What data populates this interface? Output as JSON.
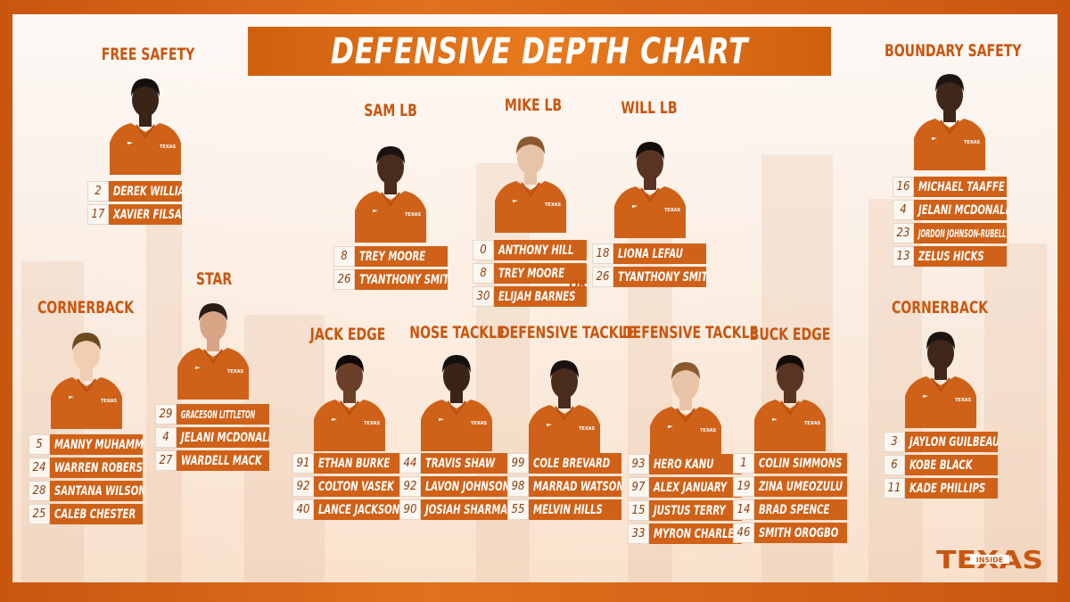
{
  "title": "DEFENSIVE DEPTH CHART",
  "or_label": "OR",
  "logo": {
    "word": "TEXAS",
    "inset": "INSIDE"
  },
  "colors": {
    "burnt_orange": "#cf6218",
    "accent": "#e87a1e",
    "background": "#fff8f1"
  },
  "positions": [
    {
      "id": "free-safety",
      "label": "FREE SAFETY",
      "players": [
        {
          "num": "2",
          "name": "DEREK WILLIAMS"
        },
        {
          "num": "17",
          "name": "XAVIER FILSAIME"
        }
      ]
    },
    {
      "id": "sam-lb",
      "label": "SAM LB",
      "players": [
        {
          "num": "8",
          "name": "TREY MOORE"
        },
        {
          "num": "26",
          "name": "TYANTHONY SMITH"
        }
      ]
    },
    {
      "id": "mike-lb",
      "label": "MIKE LB",
      "players": [
        {
          "num": "0",
          "name": "ANTHONY HILL"
        },
        {
          "num": "8",
          "name": "TREY MOORE"
        },
        {
          "num": "30",
          "name": "ELIJAH BARNES"
        }
      ]
    },
    {
      "id": "will-lb",
      "label": "WILL LB",
      "players": [
        {
          "num": "18",
          "name": "LIONA LEFAU"
        },
        {
          "num": "26",
          "name": "TYANTHONY SMITH"
        }
      ]
    },
    {
      "id": "boundary-safety",
      "label": "BOUNDARY SAFETY",
      "players": [
        {
          "num": "16",
          "name": "MICHAEL TAAFFE"
        },
        {
          "num": "4",
          "name": "JELANI MCDONALD"
        },
        {
          "num": "23",
          "name": "JORDON JOHNSON-RUBELL"
        },
        {
          "num": "13",
          "name": "ZELUS HICKS"
        }
      ]
    },
    {
      "id": "cornerback-left",
      "label": "CORNERBACK",
      "players": [
        {
          "num": "5",
          "name": "MANNY MUHAMMAD"
        },
        {
          "num": "24",
          "name": "WARREN ROBERSON"
        },
        {
          "num": "28",
          "name": "SANTANA WILSON"
        },
        {
          "num": "25",
          "name": "CALEB CHESTER"
        }
      ]
    },
    {
      "id": "star",
      "label": "STAR",
      "players": [
        {
          "num": "29",
          "name": "GRACESON LITTLETON"
        },
        {
          "num": "4",
          "name": "JELANI MCDONALD"
        },
        {
          "num": "27",
          "name": "WARDELL MACK"
        }
      ]
    },
    {
      "id": "jack-edge",
      "label": "JACK EDGE",
      "players": [
        {
          "num": "91",
          "name": "ETHAN BURKE"
        },
        {
          "num": "92",
          "name": "COLTON VASEK"
        },
        {
          "num": "40",
          "name": "LANCE JACKSON"
        }
      ]
    },
    {
      "id": "nose-tackle",
      "label": "NOSE TACKLE",
      "players": [
        {
          "num": "44",
          "name": "TRAVIS SHAW"
        },
        {
          "num": "92",
          "name": "LAVON JOHNSON"
        },
        {
          "num": "90",
          "name": "JOSIAH SHARMA"
        }
      ]
    },
    {
      "id": "defensive-tackle-1",
      "label": "DEFENSIVE TACKLE",
      "players": [
        {
          "num": "99",
          "name": "COLE BREVARD"
        },
        {
          "num": "98",
          "name": "MARRAD WATSON"
        },
        {
          "num": "55",
          "name": "MELVIN HILLS"
        }
      ]
    },
    {
      "id": "defensive-tackle-2",
      "label": "DEFENSIVE TACKLE",
      "players": [
        {
          "num": "93",
          "name": "HERO KANU"
        },
        {
          "num": "97",
          "name": "ALEX JANUARY"
        },
        {
          "num": "15",
          "name": "JUSTUS TERRY"
        },
        {
          "num": "33",
          "name": "MYRON CHARLES"
        }
      ]
    },
    {
      "id": "buck-edge",
      "label": "BUCK EDGE",
      "players": [
        {
          "num": "1",
          "name": "COLIN SIMMONS"
        },
        {
          "num": "19",
          "name": "ZINA UMEOZULU"
        },
        {
          "num": "14",
          "name": "BRAD SPENCE"
        },
        {
          "num": "46",
          "name": "SMITH OROGBO"
        }
      ]
    },
    {
      "id": "cornerback-right",
      "label": "CORNERBACK",
      "players": [
        {
          "num": "3",
          "name": "JAYLON GUILBEAU"
        },
        {
          "num": "6",
          "name": "KOBE BLACK"
        },
        {
          "num": "11",
          "name": "KADE PHILLIPS"
        }
      ]
    }
  ]
}
